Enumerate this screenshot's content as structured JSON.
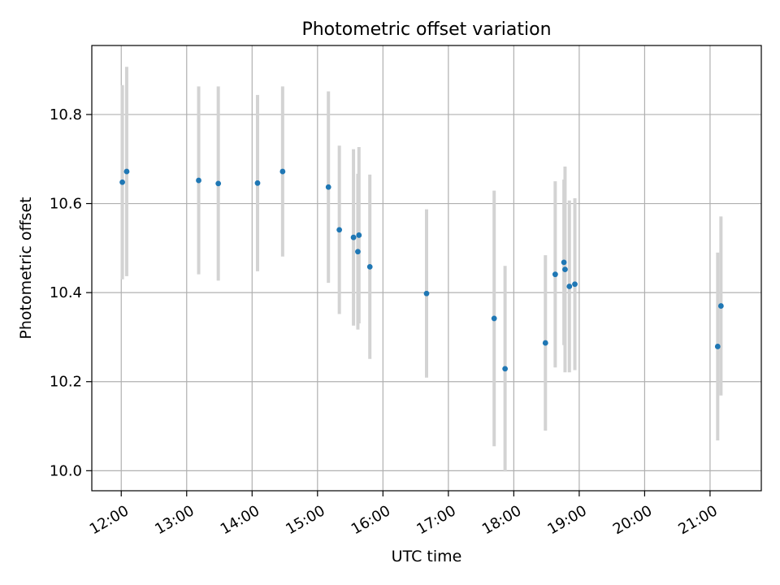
{
  "colors": {
    "point": "#1f77b4",
    "errorbar": "#d3d3d3",
    "grid": "#b0b0b0",
    "axes": "#000000"
  },
  "chart_data": {
    "type": "scatter",
    "title": "Photometric offset variation",
    "xlabel": "UTC time",
    "ylabel": "Photometric offset",
    "grid": true,
    "legend": "none",
    "xlim": [
      "11:33",
      "21:47"
    ],
    "ylim": [
      9.955,
      10.955
    ],
    "x_ticks": [
      "12:00",
      "13:00",
      "14:00",
      "15:00",
      "16:00",
      "17:00",
      "18:00",
      "19:00",
      "20:00",
      "21:00"
    ],
    "y_ticks": [
      10.0,
      10.2,
      10.4,
      10.6,
      10.8
    ],
    "y_tick_labels": [
      "10.0",
      "10.2",
      "10.4",
      "10.6",
      "10.8"
    ],
    "series": [
      {
        "points": [
          {
            "x": "12:01",
            "y": 10.648,
            "err": 0.218
          },
          {
            "x": "12:05",
            "y": 10.672,
            "err": 0.235
          },
          {
            "x": "13:11",
            "y": 10.652,
            "err": 0.211
          },
          {
            "x": "13:29",
            "y": 10.645,
            "err": 0.218
          },
          {
            "x": "14:05",
            "y": 10.646,
            "err": 0.198
          },
          {
            "x": "14:28",
            "y": 10.672,
            "err": 0.191
          },
          {
            "x": "15:10",
            "y": 10.637,
            "err": 0.215
          },
          {
            "x": "15:20",
            "y": 10.541,
            "err": 0.189
          },
          {
            "x": "15:33",
            "y": 10.524,
            "err": 0.198
          },
          {
            "x": "15:37",
            "y": 10.492,
            "err": 0.175
          },
          {
            "x": "15:38",
            "y": 10.529,
            "err": 0.198
          },
          {
            "x": "15:48",
            "y": 10.458,
            "err": 0.207
          },
          {
            "x": "16:40",
            "y": 10.398,
            "err": 0.189
          },
          {
            "x": "17:42",
            "y": 10.342,
            "err": 0.287
          },
          {
            "x": "17:52",
            "y": 10.229,
            "err": 0.231
          },
          {
            "x": "18:29",
            "y": 10.287,
            "err": 0.197
          },
          {
            "x": "18:38",
            "y": 10.441,
            "err": 0.209
          },
          {
            "x": "18:46",
            "y": 10.468,
            "err": 0.186
          },
          {
            "x": "18:47",
            "y": 10.452,
            "err": 0.231
          },
          {
            "x": "18:51",
            "y": 10.414,
            "err": 0.193
          },
          {
            "x": "18:56",
            "y": 10.419,
            "err": 0.193
          },
          {
            "x": "21:07",
            "y": 10.279,
            "err": 0.211
          },
          {
            "x": "21:10",
            "y": 10.37,
            "err": 0.201
          }
        ]
      }
    ]
  }
}
